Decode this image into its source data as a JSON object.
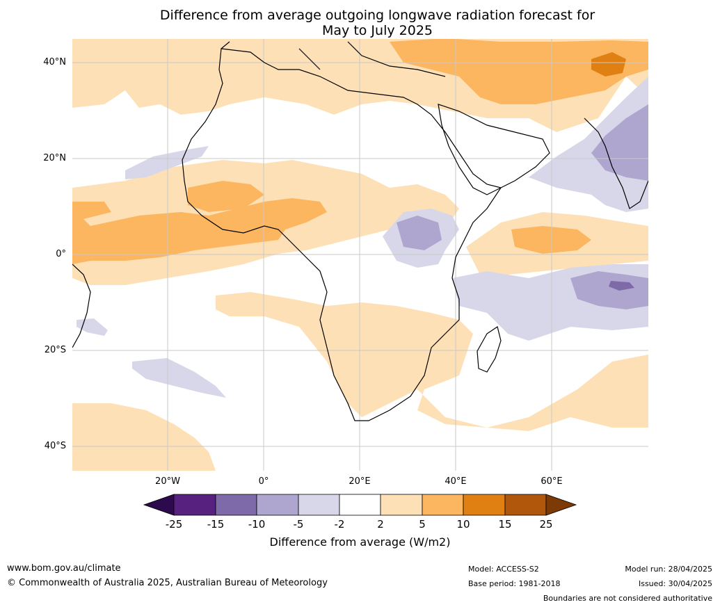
{
  "title_line1": "Difference from average outgoing longwave radiation forecast for",
  "title_line2": "May to July 2025",
  "lat_labels": [
    "40°N",
    "20°N",
    "0°",
    "20°S",
    "40°S"
  ],
  "lon_labels": [
    "20°W",
    "0°",
    "20°E",
    "40°E",
    "60°E"
  ],
  "colorbar": {
    "ticks": [
      "-25",
      "-15",
      "-10",
      "-5",
      "-2",
      "2",
      "5",
      "10",
      "15",
      "25"
    ],
    "colors": [
      "#2d0a4e",
      "#57217f",
      "#7e6aa8",
      "#afa6d0",
      "#d8d7e9",
      "#ffffff",
      "#fde0b5",
      "#fbb65f",
      "#e08012",
      "#b1570b",
      "#7b3a06"
    ],
    "label": "Difference from average (W/m2)"
  },
  "footer": {
    "website": "www.bom.gov.au/climate",
    "copyright": "© Commonwealth of Australia 2025, Australian Bureau of Meteorology",
    "model": "Model: ACCESS-S2",
    "base_period": "Base period: 1981-2018",
    "model_run": "Model run: 28/04/2025",
    "issued": "Issued: 30/04/2025",
    "disclaimer": "Boundaries are not considered authoritative"
  }
}
